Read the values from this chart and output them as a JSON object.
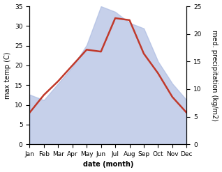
{
  "months": [
    "Jan",
    "Feb",
    "Mar",
    "Apr",
    "May",
    "Jun",
    "Jul",
    "Aug",
    "Sep",
    "Oct",
    "Nov",
    "Dec"
  ],
  "month_positions": [
    0,
    1,
    2,
    3,
    4,
    5,
    6,
    7,
    8,
    9,
    10,
    11
  ],
  "max_temp": [
    8.0,
    12.5,
    16.0,
    20.0,
    24.0,
    23.5,
    32.0,
    31.5,
    23.0,
    18.0,
    12.0,
    8.0
  ],
  "precipitation": [
    9.0,
    8.0,
    11.0,
    14.0,
    18.0,
    25.0,
    24.0,
    22.0,
    21.0,
    15.0,
    11.0,
    8.0
  ],
  "temp_color": "#c0392b",
  "precip_color": "#a8b8e0",
  "precip_fill_alpha": 0.65,
  "temp_ylim": [
    0,
    35
  ],
  "precip_ylim": [
    0,
    25
  ],
  "temp_yticks": [
    0,
    5,
    10,
    15,
    20,
    25,
    30,
    35
  ],
  "precip_yticks": [
    0,
    5,
    10,
    15,
    20,
    25
  ],
  "xlabel": "date (month)",
  "ylabel_left": "max temp (C)",
  "ylabel_right": "med. precipitation (kg/m2)",
  "background_color": "#ffffff",
  "line_width": 1.8,
  "tick_fontsize": 6.5,
  "label_fontsize": 7.0
}
